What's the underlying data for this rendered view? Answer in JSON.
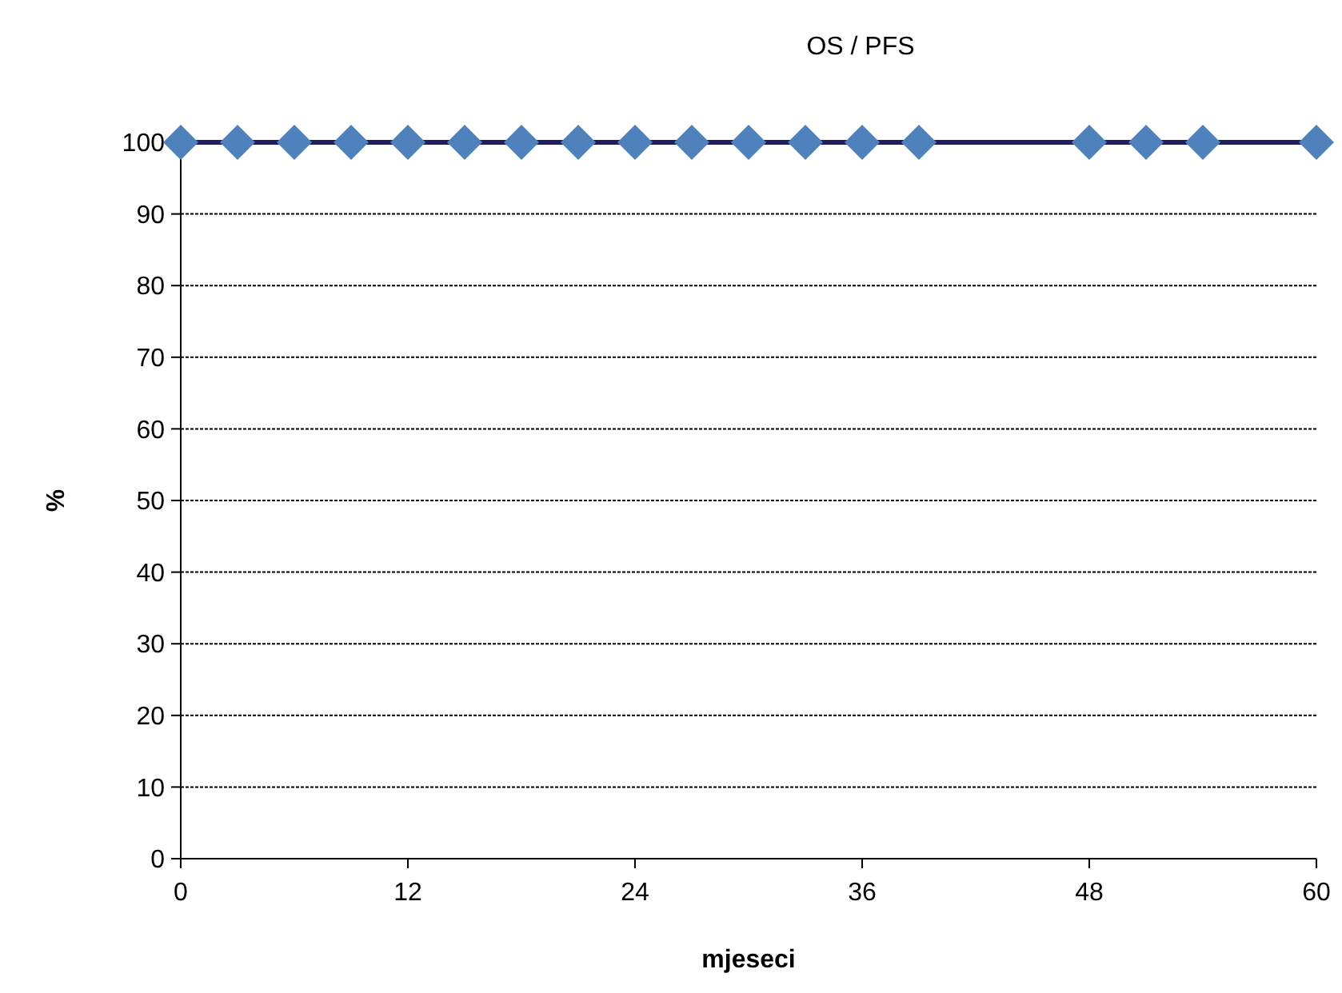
{
  "chart_data": {
    "type": "line",
    "title": "OS / PFS",
    "xlabel": "mjeseci",
    "ylabel": "%",
    "xlim": [
      0,
      60
    ],
    "xticks": [
      0,
      12,
      24,
      36,
      48,
      60
    ],
    "ylim": [
      0,
      100
    ],
    "yticks": [
      0,
      10,
      20,
      30,
      40,
      50,
      60,
      70,
      80,
      90,
      100
    ],
    "grid": "y",
    "series": [
      {
        "color": "#1f1f5e",
        "marker": "none",
        "line_style": "solid",
        "x": [
          0,
          60
        ],
        "values": [
          100,
          100
        ]
      },
      {
        "type": "scatter",
        "color": "#4f81bd",
        "marker": "diamond",
        "x": [
          0,
          3,
          6,
          9,
          12,
          15,
          18,
          21,
          24,
          27,
          30,
          33,
          36,
          39,
          48,
          51,
          54,
          60
        ],
        "values": [
          100,
          100,
          100,
          100,
          100,
          100,
          100,
          100,
          100,
          100,
          100,
          100,
          100,
          100,
          100,
          100,
          100,
          100
        ]
      }
    ]
  }
}
